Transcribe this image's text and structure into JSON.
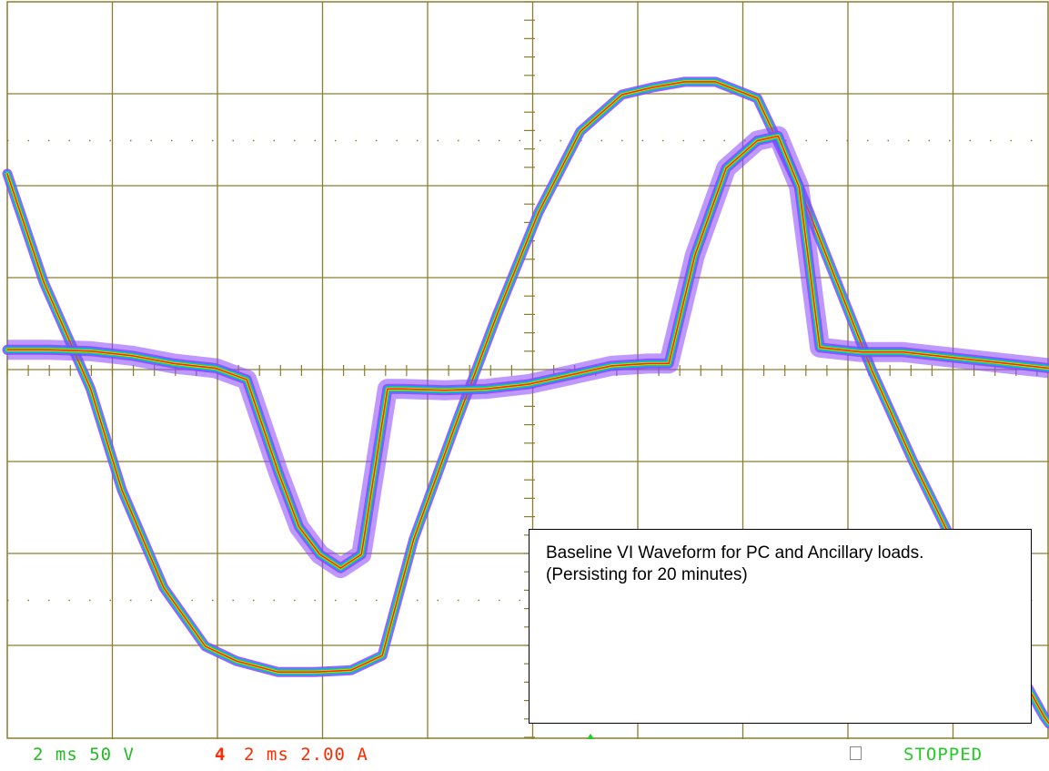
{
  "readout": {
    "ch1": "2 ms 50 V",
    "ch4_number": "4",
    "ch4": "2 ms 2.00 A",
    "status": "STOPPED"
  },
  "caption": {
    "line1": "Baseline VI Waveform for PC and Ancillary loads.",
    "line2": "(Persisting for 20 minutes)"
  },
  "colors": {
    "grid": "#8b7d2e",
    "trace_core": "#ff2000",
    "trace_mid": "#ffd000",
    "trace_green": "#00e060",
    "trace_cyan": "#00b0ff",
    "trace_halo": "#8844ff",
    "ch1_text": "#22bb22",
    "ch4_text": "#ff2a00"
  },
  "chart_data": {
    "type": "line",
    "x_unit": "ms",
    "x_per_div": 2,
    "xlim": [
      0,
      20
    ],
    "voltage_per_div": 50,
    "current_per_div": 2.0,
    "series": [
      {
        "channel": "ch1",
        "unit": "V",
        "x": [
          0,
          0.7,
          1.6,
          2.2,
          3.0,
          3.8,
          4.4,
          5.2,
          5.9,
          6.6,
          7.2,
          7.8,
          8.6,
          9.4,
          10.2,
          11.0,
          11.8,
          12.4,
          13.0,
          13.6,
          14.4,
          15.2,
          15.9,
          16.6,
          17.4,
          18.2,
          19.0,
          19.9,
          20
        ],
        "y": [
          107,
          48,
          -10,
          -65,
          -118,
          -150,
          -158,
          -164,
          -164,
          -163,
          -155,
          -92,
          -30,
          30,
          86,
          130,
          150,
          154,
          157,
          157,
          148,
          100,
          50,
          0,
          -50,
          -96,
          -142,
          -188,
          -192
        ]
      },
      {
        "channel": "ch4",
        "unit": "A",
        "x": [
          0,
          0.8,
          1.6,
          2.4,
          3.2,
          4.0,
          4.6,
          5.2,
          5.6,
          6.0,
          6.4,
          6.8,
          7.3,
          7.6,
          8.4,
          9.2,
          10.0,
          10.8,
          11.6,
          12.3,
          12.7,
          13.2,
          13.8,
          14.4,
          14.8,
          15.2,
          15.6,
          16.4,
          17.2,
          18.0,
          18.8,
          19.6,
          20
        ],
        "y": [
          0.45,
          0.45,
          0.42,
          0.32,
          0.15,
          0.05,
          -0.2,
          -2.2,
          -3.4,
          -4.0,
          -4.3,
          -4.0,
          -0.4,
          -0.4,
          -0.43,
          -0.4,
          -0.3,
          -0.1,
          0.1,
          0.15,
          0.15,
          2.5,
          4.4,
          5.0,
          5.1,
          4.0,
          0.5,
          0.4,
          0.4,
          0.3,
          0.2,
          0.1,
          0.05
        ]
      }
    ]
  }
}
